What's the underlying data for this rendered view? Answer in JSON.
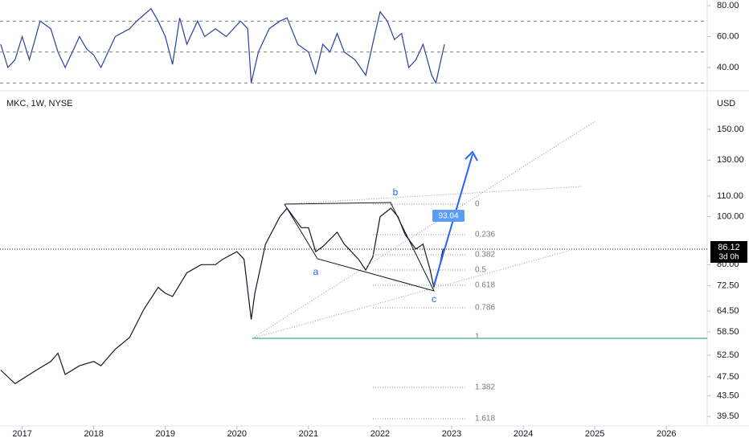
{
  "chart_data": [
    {
      "type": "line",
      "name": "rsi",
      "x": [
        2016.7,
        2016.8,
        2016.9,
        2017.0,
        2017.1,
        2017.25,
        2017.4,
        2017.5,
        2017.6,
        2017.8,
        2017.9,
        2018.0,
        2018.1,
        2018.3,
        2018.5,
        2018.6,
        2018.8,
        2018.9,
        2019.0,
        2019.1,
        2019.2,
        2019.3,
        2019.45,
        2019.55,
        2019.7,
        2019.85,
        2020.05,
        2020.15,
        2020.2,
        2020.3,
        2020.45,
        2020.6,
        2020.7,
        2020.85,
        2021.0,
        2021.1,
        2021.2,
        2021.3,
        2021.4,
        2021.5,
        2021.65,
        2021.8,
        2021.92,
        2022.0,
        2022.1,
        2022.2,
        2022.3,
        2022.4,
        2022.5,
        2022.6,
        2022.72,
        2022.78,
        2022.85,
        2022.9
      ],
      "series": [
        {
          "color": "#2a3fa0",
          "values": [
            55,
            40,
            45,
            60,
            45,
            70,
            65,
            50,
            40,
            60,
            52,
            48,
            40,
            60,
            65,
            70,
            78,
            70,
            60,
            42,
            72,
            55,
            70,
            60,
            65,
            60,
            70,
            65,
            30,
            50,
            65,
            70,
            72,
            55,
            50,
            36,
            55,
            50,
            62,
            50,
            45,
            35,
            60,
            76,
            70,
            58,
            62,
            40,
            45,
            55,
            35,
            30,
            45,
            55
          ]
        }
      ],
      "levels": [
        70,
        50,
        30
      ],
      "xlim": [
        2016.69,
        2026.57
      ],
      "ylim": [
        29.1,
        83.6
      ],
      "yticks": [
        {
          "value": 80,
          "label": "80.00"
        },
        {
          "value": 60,
          "label": "60.00"
        },
        {
          "value": 40,
          "label": "40.00"
        }
      ]
    },
    {
      "type": "line",
      "name": "price",
      "title": "MKC, 1W, NYSE",
      "y_label": "USD",
      "log_scale": true,
      "x": [
        2016.7,
        2016.9,
        2017.0,
        2017.2,
        2017.4,
        2017.5,
        2017.6,
        2017.8,
        2018.0,
        2018.1,
        2018.3,
        2018.5,
        2018.7,
        2018.9,
        2019.0,
        2019.1,
        2019.3,
        2019.5,
        2019.7,
        2019.8,
        2020.0,
        2020.1,
        2020.2,
        2020.25,
        2020.4,
        2020.6,
        2020.7,
        2020.9,
        2021.0,
        2021.1,
        2021.2,
        2021.4,
        2021.5,
        2021.7,
        2021.8,
        2021.9,
        2022.0,
        2022.15,
        2022.25,
        2022.35,
        2022.5,
        2022.6,
        2022.7,
        2022.75,
        2022.82,
        2022.88
      ],
      "series": [
        {
          "color": "#131722",
          "values": [
            49,
            46,
            47,
            49,
            51,
            53,
            48,
            50,
            51,
            50,
            54,
            57,
            65,
            72,
            70,
            69,
            77,
            80,
            80,
            82,
            85,
            82,
            62,
            70,
            88,
            100,
            104,
            95,
            95,
            85,
            87,
            93,
            88,
            82,
            78,
            83,
            100,
            104,
            100,
            92,
            86,
            88,
            78,
            72,
            78,
            86.12
          ]
        }
      ],
      "xlim": [
        2016.69,
        2026.57
      ],
      "ylim": [
        37.8,
        171.6
      ],
      "xticks": [
        2017,
        2018,
        2019,
        2020,
        2021,
        2022,
        2023,
        2024,
        2025,
        2026
      ],
      "yticks": [
        {
          "value": 150,
          "label": "150.00"
        },
        {
          "value": 130,
          "label": "130.00"
        },
        {
          "value": 110,
          "label": "110.00"
        },
        {
          "value": 100,
          "label": "100.00"
        },
        {
          "value": 80,
          "label": "80.00"
        },
        {
          "value": 72.5,
          "label": "72.50"
        },
        {
          "value": 64.5,
          "label": "64.50"
        },
        {
          "value": 58.5,
          "label": "58.50"
        },
        {
          "value": 52.5,
          "label": "52.50"
        },
        {
          "value": 47.5,
          "label": "47.50"
        },
        {
          "value": 43.5,
          "label": "43.50"
        },
        {
          "value": 39.5,
          "label": "39.50"
        }
      ],
      "last_value": 86.12,
      "countdown": "3d 0h",
      "target_value": 93.04,
      "fib_levels": [
        0,
        0.236,
        0.382,
        0.5,
        0.618,
        0.786,
        1,
        1.382,
        1.618
      ],
      "waves": [
        "a",
        "b",
        "c"
      ]
    }
  ]
}
